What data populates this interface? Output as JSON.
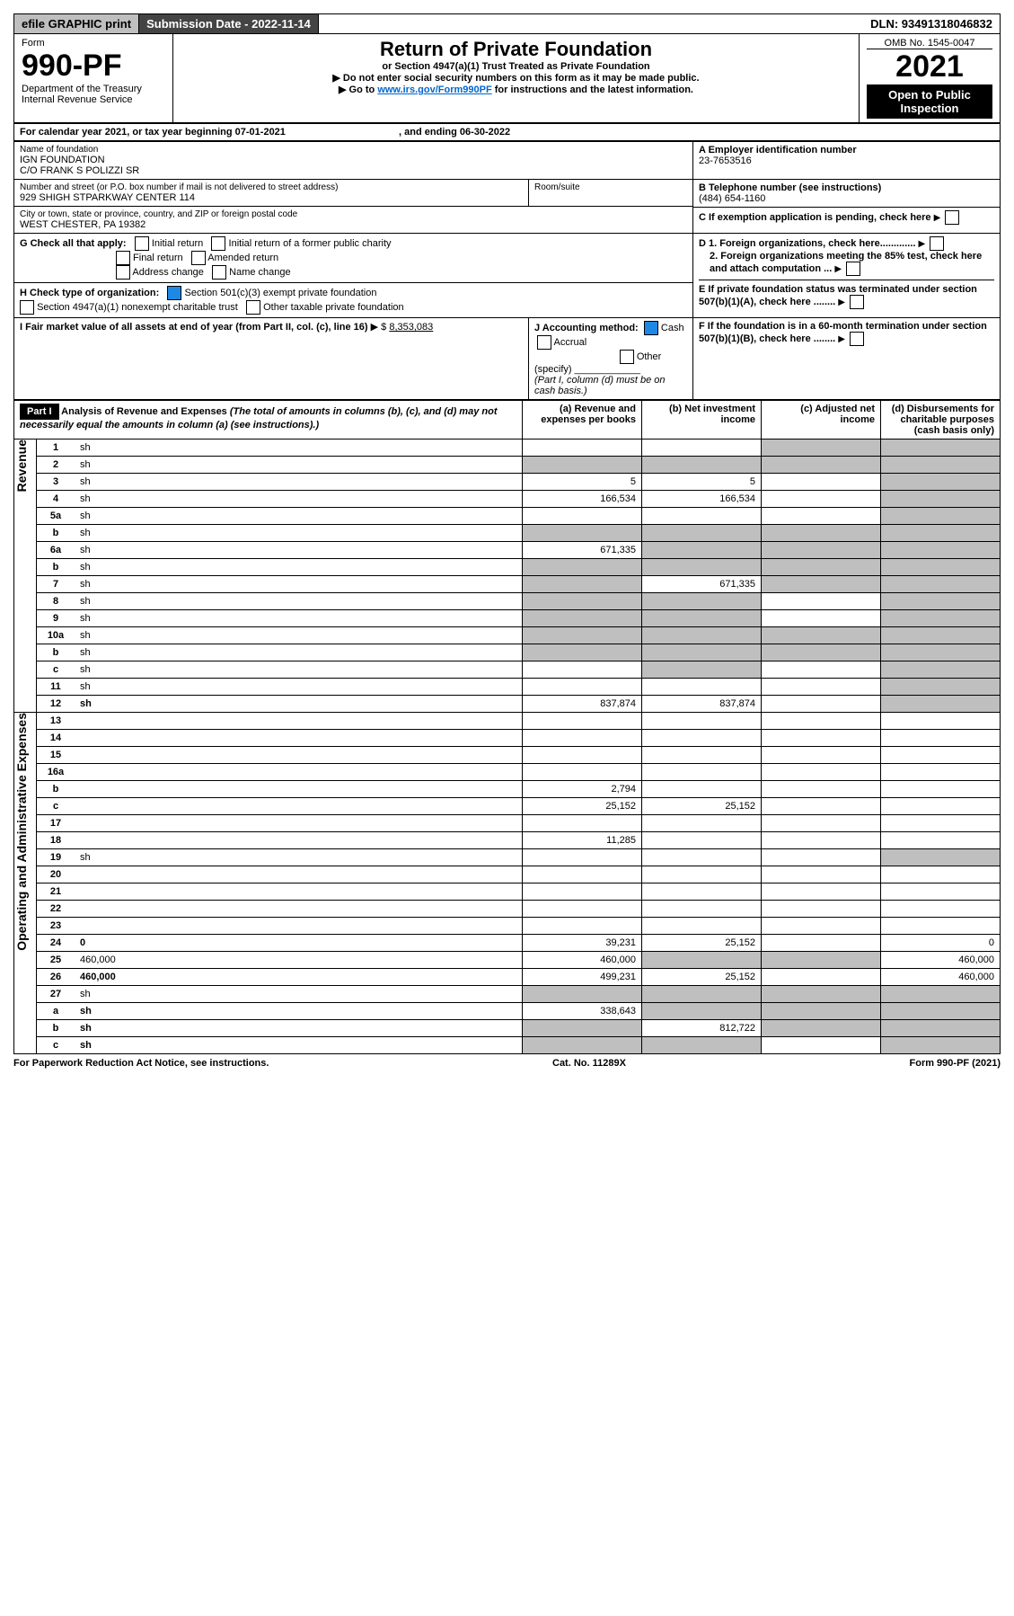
{
  "topbar": {
    "efile": "efile GRAPHIC print",
    "subdate": "Submission Date - 2022-11-14",
    "dln": "DLN: 93491318046832"
  },
  "header": {
    "form_prefix": "Form",
    "form_number": "990-PF",
    "dept": "Department of the Treasury",
    "irs": "Internal Revenue Service",
    "title": "Return of Private Foundation",
    "subtitle": "or Section 4947(a)(1) Trust Treated as Private Foundation",
    "instr1": "▶ Do not enter social security numbers on this form as it may be made public.",
    "instr2_pre": "▶ Go to ",
    "instr2_link": "www.irs.gov/Form990PF",
    "instr2_post": " for instructions and the latest information.",
    "omb": "OMB No. 1545-0047",
    "year": "2021",
    "open_public": "Open to Public Inspection"
  },
  "cal": {
    "line": "For calendar year 2021, or tax year beginning 07-01-2021",
    "end": ", and ending 06-30-2022"
  },
  "id": {
    "name_lbl": "Name of foundation",
    "name1": "IGN FOUNDATION",
    "name2": "C/O FRANK S POLIZZI SR",
    "addr_lbl": "Number and street (or P.O. box number if mail is not delivered to street address)",
    "addr": "929 SHIGH STPARKWAY CENTER 114",
    "room_lbl": "Room/suite",
    "city_lbl": "City or town, state or province, country, and ZIP or foreign postal code",
    "city": "WEST CHESTER, PA  19382",
    "ein_lbl": "A Employer identification number",
    "ein": "23-7653516",
    "tel_lbl": "B Telephone number (see instructions)",
    "tel": "(484) 654-1160",
    "c_lbl": "C If exemption application is pending, check here",
    "d1_lbl": "D 1. Foreign organizations, check here.............",
    "d2_lbl": "2. Foreign organizations meeting the 85% test, check here and attach computation ...",
    "e_lbl": "E  If private foundation status was terminated under section 507(b)(1)(A), check here ........",
    "f_lbl": "F  If the foundation is in a 60-month termination under section 507(b)(1)(B), check here ........"
  },
  "g": {
    "label": "G Check all that apply:",
    "initial": "Initial return",
    "initial_former": "Initial return of a former public charity",
    "final": "Final return",
    "amended": "Amended return",
    "addr_change": "Address change",
    "name_change": "Name change"
  },
  "h": {
    "label": "H Check type of organization:",
    "c3": "Section 501(c)(3) exempt private foundation",
    "nonexempt": "Section 4947(a)(1) nonexempt charitable trust",
    "other_taxable": "Other taxable private foundation"
  },
  "i": {
    "label": "I Fair market value of all assets at end of year (from Part II, col. (c), line 16)",
    "amount_lbl": "▶ $",
    "amount": "8,353,083"
  },
  "j": {
    "label": "J Accounting method:",
    "cash": "Cash",
    "accrual": "Accrual",
    "other": "Other (specify)",
    "note": "(Part I, column (d) must be on cash basis.)"
  },
  "part1": {
    "label": "Part I",
    "title": "Analysis of Revenue and Expenses",
    "title_note": "(The total of amounts in columns (b), (c), and (d) may not necessarily equal the amounts in column (a) (see instructions).)",
    "col_a": "(a)   Revenue and expenses per books",
    "col_b": "(b)   Net investment income",
    "col_c": "(c)   Adjusted net income",
    "col_d": "(d)   Disbursements for charitable purposes (cash basis only)"
  },
  "sections": {
    "revenue": "Revenue",
    "expenses": "Operating and Administrative Expenses"
  },
  "rows": [
    {
      "n": "1",
      "d": "sh",
      "a": "",
      "b": "",
      "c": "sh"
    },
    {
      "n": "2",
      "d": "sh",
      "a": "sh",
      "b": "sh",
      "c": "sh"
    },
    {
      "n": "3",
      "d": "sh",
      "a": "5",
      "b": "5",
      "c": ""
    },
    {
      "n": "4",
      "d": "sh",
      "a": "166,534",
      "b": "166,534",
      "c": ""
    },
    {
      "n": "5a",
      "d": "sh",
      "a": "",
      "b": "",
      "c": ""
    },
    {
      "n": "b",
      "d": "sh",
      "a": "sh",
      "b": "sh",
      "c": "sh"
    },
    {
      "n": "6a",
      "d": "sh",
      "a": "671,335",
      "b": "sh",
      "c": "sh"
    },
    {
      "n": "b",
      "d": "sh",
      "a": "sh",
      "b": "sh",
      "c": "sh"
    },
    {
      "n": "7",
      "d": "sh",
      "a": "sh",
      "b": "671,335",
      "c": "sh"
    },
    {
      "n": "8",
      "d": "sh",
      "a": "sh",
      "b": "sh",
      "c": ""
    },
    {
      "n": "9",
      "d": "sh",
      "a": "sh",
      "b": "sh",
      "c": ""
    },
    {
      "n": "10a",
      "d": "sh",
      "a": "sh",
      "b": "sh",
      "c": "sh"
    },
    {
      "n": "b",
      "d": "sh",
      "a": "sh",
      "b": "sh",
      "c": "sh"
    },
    {
      "n": "c",
      "d": "sh",
      "a": "",
      "b": "sh",
      "c": ""
    },
    {
      "n": "11",
      "d": "sh",
      "a": "",
      "b": "",
      "c": ""
    },
    {
      "n": "12",
      "d": "sh",
      "bold": true,
      "a": "837,874",
      "b": "837,874",
      "c": ""
    },
    {
      "n": "13",
      "d": "",
      "a": "",
      "b": "",
      "c": ""
    },
    {
      "n": "14",
      "d": "",
      "a": "",
      "b": "",
      "c": ""
    },
    {
      "n": "15",
      "d": "",
      "a": "",
      "b": "",
      "c": ""
    },
    {
      "n": "16a",
      "d": "",
      "a": "",
      "b": "",
      "c": ""
    },
    {
      "n": "b",
      "d": "",
      "a": "2,794",
      "b": "",
      "c": ""
    },
    {
      "n": "c",
      "d": "",
      "a": "25,152",
      "b": "25,152",
      "c": ""
    },
    {
      "n": "17",
      "d": "",
      "a": "",
      "b": "",
      "c": ""
    },
    {
      "n": "18",
      "d": "",
      "a": "11,285",
      "b": "",
      "c": ""
    },
    {
      "n": "19",
      "d": "sh",
      "a": "",
      "b": "",
      "c": ""
    },
    {
      "n": "20",
      "d": "",
      "a": "",
      "b": "",
      "c": ""
    },
    {
      "n": "21",
      "d": "",
      "a": "",
      "b": "",
      "c": ""
    },
    {
      "n": "22",
      "d": "",
      "a": "",
      "b": "",
      "c": ""
    },
    {
      "n": "23",
      "d": "",
      "a": "",
      "b": "",
      "c": ""
    },
    {
      "n": "24",
      "d": "0",
      "bold": true,
      "a": "39,231",
      "b": "25,152",
      "c": ""
    },
    {
      "n": "25",
      "d": "460,000",
      "a": "460,000",
      "b": "sh",
      "c": "sh"
    },
    {
      "n": "26",
      "d": "460,000",
      "bold": true,
      "a": "499,231",
      "b": "25,152",
      "c": ""
    },
    {
      "n": "27",
      "d": "sh",
      "a": "sh",
      "b": "sh",
      "c": "sh"
    },
    {
      "n": "a",
      "d": "sh",
      "bold": true,
      "a": "338,643",
      "b": "sh",
      "c": "sh"
    },
    {
      "n": "b",
      "d": "sh",
      "bold": true,
      "a": "sh",
      "b": "812,722",
      "c": "sh"
    },
    {
      "n": "c",
      "d": "sh",
      "bold": true,
      "a": "sh",
      "b": "sh",
      "c": ""
    }
  ],
  "footer": {
    "pra": "For Paperwork Reduction Act Notice, see instructions.",
    "cat": "Cat. No. 11289X",
    "form": "Form 990-PF (2021)"
  },
  "colors": {
    "shaded_bg": "#bfbfbf",
    "link": "#0066cc",
    "check_green": "#2e7d32"
  }
}
